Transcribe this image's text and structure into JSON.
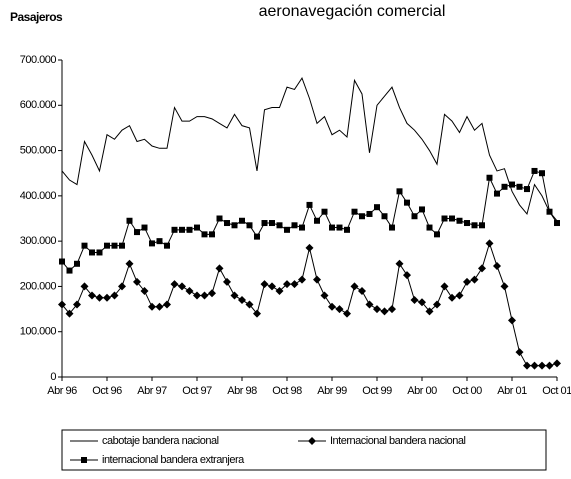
{
  "chart_data": {
    "type": "line",
    "title": "aeronavegación comercial",
    "y_label": "Pasajeros",
    "categories": [
      "Abr 96",
      null,
      null,
      null,
      null,
      null,
      "Oct 96",
      null,
      null,
      null,
      null,
      null,
      "Abr 97",
      null,
      null,
      null,
      null,
      null,
      "Oct 97",
      null,
      null,
      null,
      null,
      null,
      "Abr 98",
      null,
      null,
      null,
      null,
      null,
      "Oct 98",
      null,
      null,
      null,
      null,
      null,
      "Abr 99",
      null,
      null,
      null,
      null,
      null,
      "Oct 99",
      null,
      null,
      null,
      null,
      null,
      "Abr 00",
      null,
      null,
      null,
      null,
      null,
      "Oct 00",
      null,
      null,
      null,
      null,
      null,
      "Abr 01",
      null,
      null,
      null,
      null,
      null,
      "Oct 01"
    ],
    "series": [
      {
        "name": "cabotaje bandera nacional",
        "color": "#000000",
        "marker": "none",
        "values": [
          455000,
          435000,
          425000,
          520000,
          490000,
          455000,
          535000,
          525000,
          545000,
          555000,
          520000,
          525000,
          510000,
          505000,
          505000,
          595000,
          565000,
          565000,
          575000,
          575000,
          570000,
          560000,
          550000,
          580000,
          555000,
          550000,
          455000,
          590000,
          595000,
          595000,
          640000,
          635000,
          660000,
          615000,
          560000,
          575000,
          535000,
          545000,
          530000,
          655000,
          625000,
          495000,
          600000,
          620000,
          640000,
          595000,
          560000,
          545000,
          525000,
          500000,
          470000,
          580000,
          565000,
          540000,
          575000,
          545000,
          560000,
          490000,
          455000,
          460000,
          410000,
          380000,
          360000,
          425000,
          400000,
          365000,
          345000
        ]
      },
      {
        "name": "Internacional bandera nacional",
        "color": "#000000",
        "marker": "diamond",
        "values": [
          160000,
          140000,
          160000,
          200000,
          180000,
          175000,
          175000,
          180000,
          200000,
          250000,
          210000,
          190000,
          155000,
          155000,
          160000,
          205000,
          200000,
          190000,
          180000,
          180000,
          185000,
          240000,
          210000,
          180000,
          170000,
          160000,
          140000,
          205000,
          200000,
          190000,
          205000,
          205000,
          215000,
          285000,
          215000,
          180000,
          155000,
          150000,
          140000,
          200000,
          190000,
          160000,
          150000,
          145000,
          150000,
          250000,
          225000,
          170000,
          165000,
          145000,
          160000,
          200000,
          175000,
          180000,
          210000,
          215000,
          240000,
          295000,
          245000,
          200000,
          125000,
          55000,
          25000,
          25000,
          25000,
          25000,
          30000
        ]
      },
      {
        "name": "internacional bandera extranjera",
        "color": "#000000",
        "marker": "square",
        "values": [
          255000,
          235000,
          250000,
          290000,
          275000,
          275000,
          290000,
          290000,
          290000,
          345000,
          320000,
          330000,
          295000,
          300000,
          290000,
          325000,
          325000,
          325000,
          330000,
          315000,
          315000,
          350000,
          340000,
          335000,
          345000,
          335000,
          310000,
          340000,
          340000,
          335000,
          325000,
          335000,
          330000,
          380000,
          345000,
          365000,
          330000,
          330000,
          325000,
          365000,
          355000,
          360000,
          375000,
          355000,
          330000,
          410000,
          385000,
          355000,
          370000,
          330000,
          315000,
          350000,
          350000,
          345000,
          340000,
          335000,
          335000,
          440000,
          405000,
          420000,
          425000,
          420000,
          415000,
          455000,
          450000,
          365000,
          340000
        ]
      }
    ],
    "ylim": [
      0,
      700000
    ],
    "yticks": [
      0,
      {
        "value": 100000,
        "label": "100.000"
      },
      {
        "value": 200000,
        "label": "200.000"
      },
      {
        "value": 300000,
        "label": "300.000"
      },
      {
        "value": 400000,
        "label": "400.000"
      },
      {
        "value": 500000,
        "label": "500.000"
      },
      {
        "value": 600000,
        "label": "600.000"
      },
      {
        "value": 700000,
        "label": "700.000"
      }
    ],
    "grid": false
  }
}
